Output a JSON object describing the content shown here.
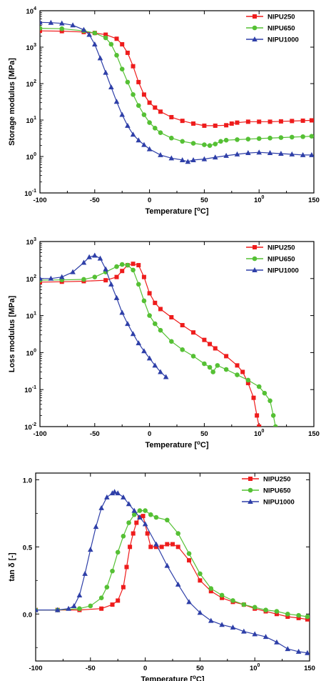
{
  "colors": {
    "NIPU250": "#ee1c1c",
    "NIPU650": "#55c034",
    "NIPU1000": "#2e3fa8"
  },
  "chart_data": [
    {
      "type": "line",
      "xlabel": "Temperature [°C]",
      "ylabel": "Storage modulus [MPa]",
      "yscale": "log",
      "xlim": [
        -100,
        150
      ],
      "ylim": [
        0.1,
        10000
      ],
      "xticks": [
        "-100",
        "-50",
        "0",
        "50",
        "100",
        "150"
      ],
      "yticks": [
        "10-1",
        "100",
        "101",
        "102",
        "103",
        "104"
      ],
      "legend_position": "top-right",
      "series": [
        {
          "name": "NIPU250",
          "marker": "square",
          "x": [
            -100,
            -80,
            -60,
            -50,
            -40,
            -30,
            -25,
            -20,
            -15,
            -10,
            -5,
            0,
            5,
            10,
            20,
            30,
            40,
            50,
            60,
            70,
            75,
            80,
            90,
            100,
            110,
            120,
            130,
            140,
            148
          ],
          "y": [
            2800,
            2750,
            2600,
            2450,
            2200,
            1700,
            1200,
            700,
            300,
            110,
            50,
            30,
            22,
            17,
            12,
            9.5,
            8,
            7,
            7,
            7.2,
            8,
            8.5,
            9,
            9,
            9,
            9.2,
            9.4,
            9.6,
            9.8
          ]
        },
        {
          "name": "NIPU650",
          "marker": "circle",
          "x": [
            -100,
            -80,
            -60,
            -50,
            -40,
            -35,
            -30,
            -25,
            -20,
            -15,
            -10,
            -5,
            0,
            5,
            10,
            20,
            30,
            40,
            50,
            55,
            60,
            65,
            70,
            80,
            90,
            100,
            110,
            120,
            130,
            140,
            148
          ],
          "y": [
            3300,
            3200,
            2800,
            2450,
            1800,
            1200,
            600,
            250,
            110,
            50,
            25,
            14,
            8.5,
            6,
            4.5,
            3.2,
            2.6,
            2.3,
            2.1,
            2.0,
            2.2,
            2.6,
            2.8,
            2.9,
            3.0,
            3.1,
            3.2,
            3.3,
            3.4,
            3.5,
            3.6
          ]
        },
        {
          "name": "NIPU1000",
          "marker": "triangle",
          "x": [
            -100,
            -90,
            -80,
            -70,
            -60,
            -55,
            -50,
            -45,
            -40,
            -35,
            -30,
            -25,
            -20,
            -15,
            -10,
            -5,
            0,
            10,
            20,
            30,
            35,
            40,
            50,
            60,
            70,
            80,
            90,
            100,
            110,
            120,
            130,
            140,
            148
          ],
          "y": [
            4800,
            4700,
            4500,
            4000,
            3000,
            2200,
            1200,
            500,
            200,
            80,
            32,
            14,
            7,
            4,
            2.8,
            2.1,
            1.6,
            1.1,
            0.9,
            0.8,
            0.72,
            0.8,
            0.85,
            0.95,
            1.05,
            1.15,
            1.25,
            1.3,
            1.25,
            1.2,
            1.15,
            1.1,
            1.1
          ]
        }
      ]
    },
    {
      "type": "line",
      "xlabel": "Temperature [°C]",
      "ylabel": "Loss modulus [MPa]",
      "yscale": "log",
      "xlim": [
        -100,
        150
      ],
      "ylim": [
        0.01,
        1000
      ],
      "xticks": [
        "-100",
        "-50",
        "0",
        "50",
        "100",
        "150"
      ],
      "yticks": [
        "10-2",
        "10-1",
        "100",
        "101",
        "102",
        "103"
      ],
      "legend_position": "top-right",
      "series": [
        {
          "name": "NIPU250",
          "marker": "square",
          "x": [
            -100,
            -80,
            -60,
            -40,
            -30,
            -25,
            -20,
            -15,
            -10,
            -5,
            0,
            5,
            10,
            20,
            30,
            40,
            50,
            55,
            60,
            70,
            80,
            85,
            90,
            95,
            98,
            100
          ],
          "y": [
            80,
            82,
            85,
            90,
            110,
            160,
            230,
            250,
            230,
            110,
            40,
            22,
            15,
            9,
            5.5,
            3.5,
            2.2,
            1.7,
            1.3,
            0.8,
            0.45,
            0.3,
            0.15,
            0.06,
            0.02,
            0.01
          ]
        },
        {
          "name": "NIPU650",
          "marker": "circle",
          "x": [
            -100,
            -80,
            -60,
            -50,
            -40,
            -30,
            -25,
            -20,
            -15,
            -10,
            -5,
            0,
            5,
            10,
            20,
            30,
            40,
            50,
            55,
            58,
            62,
            70,
            80,
            90,
            100,
            105,
            110,
            113,
            115
          ],
          "y": [
            90,
            92,
            95,
            110,
            150,
            210,
            240,
            230,
            170,
            70,
            25,
            10,
            6,
            4,
            2,
            1.2,
            0.8,
            0.5,
            0.4,
            0.3,
            0.45,
            0.35,
            0.25,
            0.18,
            0.12,
            0.08,
            0.05,
            0.02,
            0.01
          ]
        },
        {
          "name": "NIPU1000",
          "marker": "triangle",
          "x": [
            -100,
            -90,
            -80,
            -70,
            -60,
            -55,
            -50,
            -45,
            -40,
            -35,
            -30,
            -25,
            -20,
            -15,
            -10,
            -5,
            0,
            5,
            10,
            15
          ],
          "y": [
            100,
            100,
            110,
            150,
            270,
            380,
            420,
            350,
            180,
            70,
            30,
            12,
            6,
            3.2,
            1.8,
            1.1,
            0.7,
            0.45,
            0.3,
            0.22
          ]
        }
      ]
    },
    {
      "type": "line",
      "xlabel": "Temperature [°C]",
      "ylabel": "tan δ [-]",
      "yscale": "linear",
      "xlim": [
        -100,
        150
      ],
      "ylim": [
        -0.35,
        1.05
      ],
      "xticks": [
        "-100",
        "-50",
        "0",
        "50",
        "100",
        "150"
      ],
      "yticks": [
        "0.0",
        "0.5",
        "1.0"
      ],
      "legend_position": "top-right",
      "series": [
        {
          "name": "NIPU250",
          "marker": "square",
          "x": [
            -100,
            -80,
            -60,
            -40,
            -30,
            -25,
            -20,
            -17,
            -14,
            -11,
            -8,
            -5,
            -2,
            2,
            5,
            10,
            15,
            20,
            25,
            30,
            40,
            50,
            60,
            70,
            80,
            90,
            100,
            110,
            120,
            130,
            140,
            148
          ],
          "y": [
            0.03,
            0.03,
            0.03,
            0.04,
            0.07,
            0.1,
            0.2,
            0.35,
            0.5,
            0.6,
            0.68,
            0.72,
            0.73,
            0.6,
            0.5,
            0.5,
            0.5,
            0.52,
            0.52,
            0.5,
            0.4,
            0.25,
            0.17,
            0.12,
            0.09,
            0.07,
            0.04,
            0.02,
            0.0,
            -0.02,
            -0.03,
            -0.04
          ]
        },
        {
          "name": "NIPU650",
          "marker": "circle",
          "x": [
            -100,
            -80,
            -60,
            -50,
            -40,
            -35,
            -30,
            -25,
            -20,
            -15,
            -10,
            -5,
            0,
            5,
            10,
            20,
            30,
            40,
            50,
            60,
            70,
            80,
            90,
            100,
            110,
            120,
            130,
            140,
            148
          ],
          "y": [
            0.03,
            0.03,
            0.04,
            0.06,
            0.12,
            0.2,
            0.32,
            0.46,
            0.58,
            0.68,
            0.74,
            0.77,
            0.77,
            0.74,
            0.72,
            0.7,
            0.6,
            0.45,
            0.3,
            0.19,
            0.14,
            0.1,
            0.07,
            0.05,
            0.03,
            0.02,
            0.0,
            -0.01,
            -0.02
          ]
        },
        {
          "name": "NIPU1000",
          "marker": "triangle",
          "x": [
            -100,
            -80,
            -70,
            -65,
            -60,
            -55,
            -50,
            -45,
            -40,
            -35,
            -30,
            -28,
            -25,
            -20,
            -15,
            -10,
            -5,
            0,
            10,
            20,
            30,
            40,
            50,
            60,
            70,
            80,
            90,
            100,
            110,
            120,
            130,
            140,
            148
          ],
          "y": [
            0.03,
            0.03,
            0.04,
            0.06,
            0.14,
            0.3,
            0.48,
            0.65,
            0.79,
            0.87,
            0.9,
            0.91,
            0.9,
            0.87,
            0.82,
            0.77,
            0.72,
            0.67,
            0.52,
            0.36,
            0.22,
            0.09,
            0.01,
            -0.05,
            -0.08,
            -0.1,
            -0.13,
            -0.15,
            -0.17,
            -0.21,
            -0.26,
            -0.28,
            -0.29
          ]
        }
      ]
    }
  ]
}
